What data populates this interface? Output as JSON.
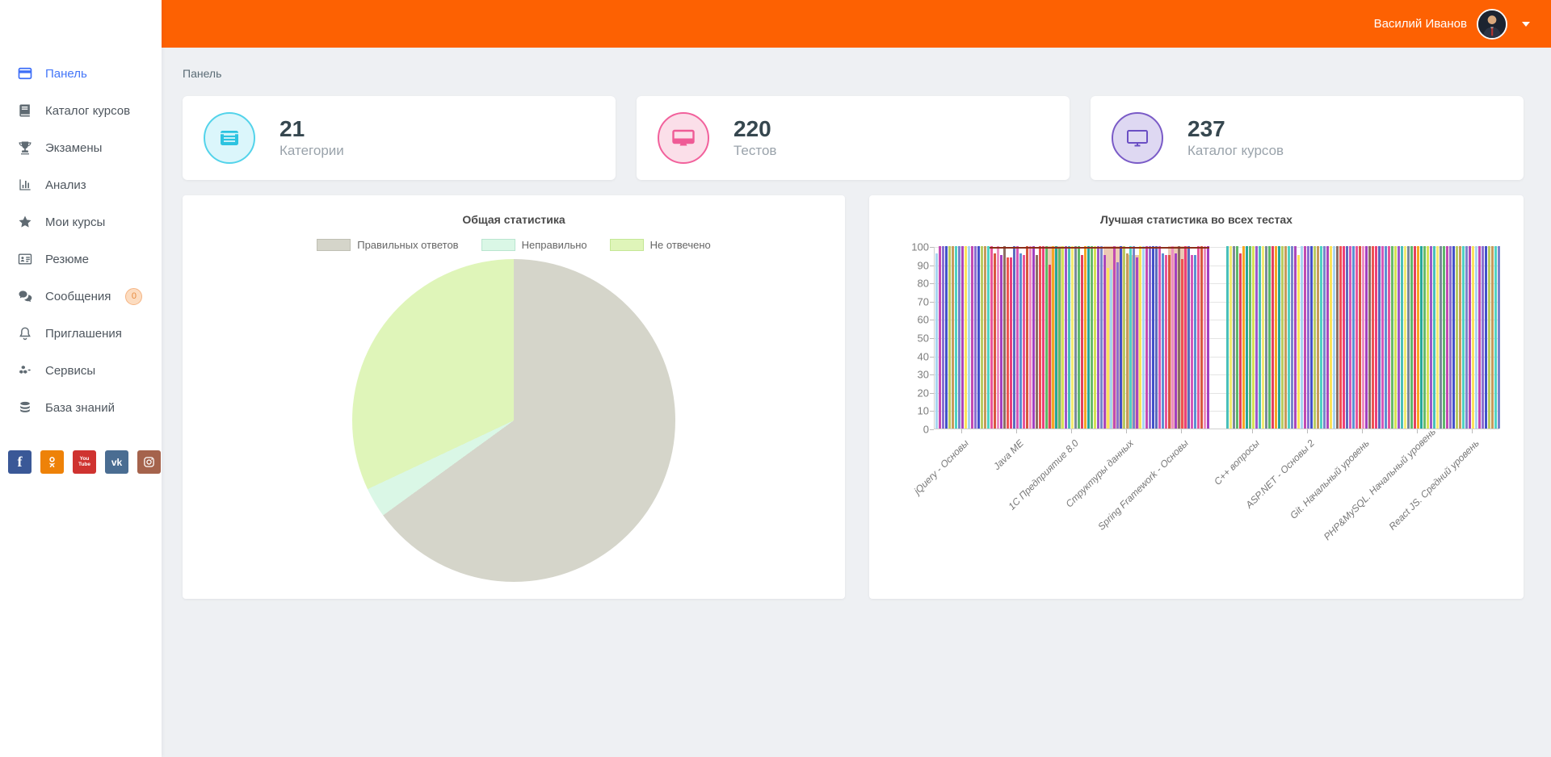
{
  "header": {
    "user_name": "Василий Иванов",
    "bg_color": "#fd6102"
  },
  "breadcrumb": "Панель",
  "sidebar": {
    "items": [
      {
        "label": "Панель",
        "icon": "dashboard-icon",
        "active": true
      },
      {
        "label": "Каталог курсов",
        "icon": "book-icon",
        "active": false
      },
      {
        "label": "Экзамены",
        "icon": "trophy-icon",
        "active": false
      },
      {
        "label": "Анализ",
        "icon": "bar-chart-icon",
        "active": false
      },
      {
        "label": "Мои курсы",
        "icon": "star-icon",
        "active": false
      },
      {
        "label": "Резюме",
        "icon": "id-card-icon",
        "active": false
      },
      {
        "label": "Сообщения",
        "icon": "chat-icon",
        "active": false,
        "badge": "0"
      },
      {
        "label": "Приглашения",
        "icon": "bell-icon",
        "active": false
      },
      {
        "label": "Сервисы",
        "icon": "cubes-icon",
        "active": false
      },
      {
        "label": "База знаний",
        "icon": "database-icon",
        "active": false
      }
    ],
    "social": [
      {
        "name": "facebook",
        "color": "#3a5897"
      },
      {
        "name": "odnoklassniki",
        "color": "#ee8208"
      },
      {
        "name": "youtube",
        "color": "#cf3330",
        "lines": [
          "You",
          "Tube"
        ]
      },
      {
        "name": "vk",
        "color": "#4a6d92",
        "glyph": "vk"
      },
      {
        "name": "instagram",
        "color": "#a5634c"
      }
    ]
  },
  "stats": [
    {
      "value": "21",
      "label": "Категории",
      "icon": "list-card-icon",
      "circle_bg": "#dbf6fb",
      "circle_border": "#53d3ea",
      "icon_color": "#2cc3e0"
    },
    {
      "value": "220",
      "label": "Тестов",
      "icon": "monitor-solid-icon",
      "circle_bg": "#fbdfe9",
      "circle_border": "#f2619c",
      "icon_color": "#ef5b96"
    },
    {
      "value": "237",
      "label": "Каталог курсов",
      "icon": "monitor-outline-icon",
      "circle_bg": "#ded8f2",
      "circle_border": "#7a5bc7",
      "icon_color": "#6b4fc4"
    }
  ],
  "chart_data": [
    {
      "type": "pie",
      "title": "Общая статистика",
      "labels": [
        "Правильных ответов",
        "Неправильно",
        "Не отвечено"
      ],
      "values": [
        65,
        3,
        32
      ],
      "colors": [
        "#d5d5ca",
        "#daf7e6",
        "#dff5b9"
      ],
      "swatch_borders": [
        "#bfbfb3",
        "#b9e5cf",
        "#c4e795"
      ],
      "legend_position": "top",
      "start_angle_deg": 0,
      "direction": "clockwise"
    },
    {
      "type": "bar",
      "title": "Лучшая статистика во всех тестах",
      "ylabel": "",
      "xlabel": "",
      "ylim": [
        0,
        100
      ],
      "ytick_step": 10,
      "grid": true,
      "categories": [
        "jQuery - Основы",
        "Java ME",
        "1С Предприятие 8.0",
        "Структуры данных",
        "Spring Framework - Основы",
        "C++ вопросы",
        "ASP.NET - Основы 2",
        "Git. Начальный уровень",
        "PHP&MySQL. Начальный уровень",
        "React JS. Средний уровень"
      ],
      "groups": [
        [
          96,
          100,
          100,
          100,
          100,
          100,
          100,
          100,
          100,
          100,
          100,
          100,
          100,
          100,
          100,
          100,
          100
        ],
        [
          100,
          96,
          100,
          95,
          100,
          94,
          94,
          100,
          100,
          96,
          95,
          100,
          100,
          100,
          95,
          100,
          100
        ],
        [
          100,
          90,
          100,
          100,
          99,
          100,
          100,
          100,
          100,
          100,
          100,
          95,
          100,
          100,
          100,
          100,
          100
        ],
        [
          100,
          95,
          88,
          87,
          100,
          91,
          100,
          100,
          96,
          100,
          100,
          94,
          100,
          100,
          100,
          100,
          100
        ],
        [
          100,
          100,
          96,
          95,
          95,
          100,
          96,
          100,
          93,
          100,
          100,
          95,
          95,
          100,
          100,
          100,
          100
        ],
        [
          100,
          100,
          100,
          100,
          96,
          100,
          100,
          100,
          100,
          100,
          100,
          100,
          100,
          100,
          100,
          100,
          100
        ],
        [
          100,
          100,
          100,
          100,
          100,
          95,
          100,
          100,
          100,
          100,
          100,
          100,
          100,
          100,
          100,
          100,
          100
        ],
        [
          100,
          100,
          100,
          100,
          100,
          100,
          100,
          100,
          100,
          100,
          100,
          100,
          100,
          100,
          100,
          100,
          100
        ],
        [
          100,
          100,
          100,
          100,
          100,
          100,
          100,
          100,
          100,
          100,
          100,
          100,
          100,
          100,
          100,
          100,
          100
        ],
        [
          100,
          100,
          100,
          100,
          100,
          100,
          100,
          100,
          100,
          100,
          100,
          100,
          100,
          100,
          100,
          100,
          100
        ]
      ],
      "palette": [
        "#a8d4f0",
        "#d457b8",
        "#9c59c9",
        "#c24ab2",
        "#5d8fd3",
        "#49c0b9",
        "#8a6fd1",
        "#e8559c",
        "#f2ea71",
        "#4350c9",
        "#d8573f",
        "#7a8a99",
        "#b8cc62",
        "#ee8cc1",
        "#5fb96a",
        "#c79a5b",
        "#a33fc0",
        "#e4405f",
        "#50d2c2",
        "#8d6e63",
        "#f6a623",
        "#7986cb",
        "#ef5350",
        "#26a69a",
        "#ab47bc",
        "#ec407a",
        "#66bb6a",
        "#fbe35b",
        "#5c6bc0",
        "#d4e157"
      ],
      "overlay_line": {
        "start_group": 1,
        "end_group": 4,
        "value": 100,
        "color": "#8c2f1b"
      },
      "wide_bars": [
        {
          "group": 2,
          "start": 0,
          "span": 5,
          "value": 100,
          "color": "#eccab5"
        },
        {
          "group": 3,
          "start": 1,
          "span": 6,
          "value": 100,
          "color": "#eccab5"
        },
        {
          "group": 3,
          "start": 8,
          "span": 4,
          "value": 95,
          "color": "#e8c4ae"
        },
        {
          "group": 4,
          "start": 4,
          "span": 6,
          "value": 100,
          "color": "#eccab5"
        }
      ]
    }
  ]
}
